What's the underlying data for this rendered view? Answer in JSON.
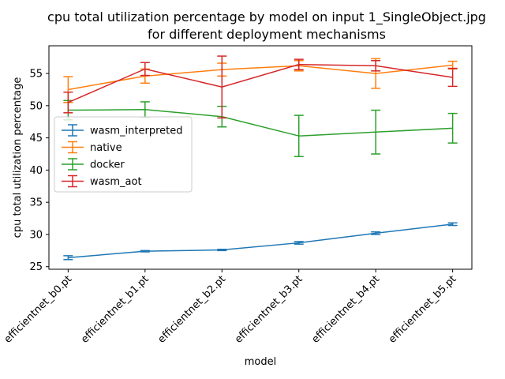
{
  "chart_data": {
    "type": "line",
    "title_lines": [
      "cpu total utilization percentage by model on input 1_SingleObject.jpg",
      "for different deployment mechanisms"
    ],
    "xlabel": "model",
    "ylabel": "cpu total utilization percentage",
    "categories": [
      "efficientnet_b0.pt",
      "efficientnet_b1.pt",
      "efficientnet_b2.pt",
      "efficientnet_b3.pt",
      "efficientnet_b4.pt",
      "efficientnet_b5.pt"
    ],
    "ylim": [
      24.6,
      59.3
    ],
    "yticks": [
      25,
      30,
      35,
      40,
      45,
      50,
      55
    ],
    "grid": false,
    "legend_position": "center-left",
    "series": [
      {
        "name": "wasm_interpreted",
        "color": "#1f77b4",
        "values": [
          26.4,
          27.4,
          27.6,
          28.7,
          30.2,
          31.6
        ],
        "errors": [
          0.3,
          0.1,
          0.1,
          0.2,
          0.2,
          0.2
        ]
      },
      {
        "name": "native",
        "color": "#ff7f0e",
        "values": [
          52.5,
          54.6,
          55.6,
          56.2,
          55.0,
          56.3
        ],
        "errors": [
          2.0,
          1.1,
          1.0,
          0.8,
          2.3,
          0.6
        ]
      },
      {
        "name": "docker",
        "color": "#2ca02c",
        "values": [
          49.3,
          49.4,
          48.3,
          45.3,
          45.9,
          46.5
        ],
        "errors": [
          1.5,
          1.2,
          1.6,
          3.2,
          3.4,
          2.3
        ]
      },
      {
        "name": "wasm_aot",
        "color": "#d62728",
        "values": [
          50.5,
          55.7,
          52.9,
          56.4,
          56.2,
          54.4
        ],
        "errors": [
          1.6,
          1.0,
          4.8,
          0.8,
          0.8,
          1.4
        ]
      }
    ]
  }
}
